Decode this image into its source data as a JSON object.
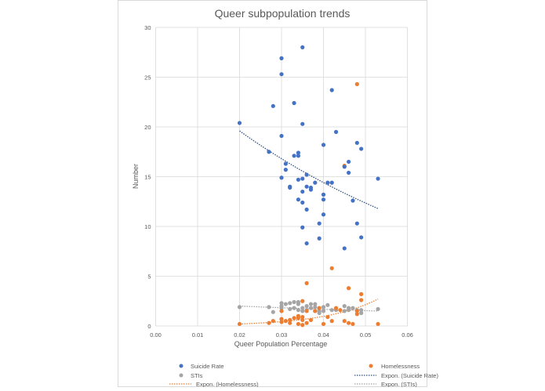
{
  "chart_data": {
    "type": "scatter",
    "title": "Queer subpopulation trends",
    "xlabel": "Queer Population Percentage",
    "ylabel": "Number",
    "xlim": [
      0,
      0.06
    ],
    "ylim": [
      0,
      30
    ],
    "x_ticks": [
      "0.00",
      "0.01",
      "0.02",
      "0.03",
      "0.04",
      "0.05",
      "0.06"
    ],
    "y_ticks": [
      "0",
      "5",
      "10",
      "15",
      "20",
      "25",
      "30"
    ],
    "grid": true,
    "legend_position": "bottom",
    "series": [
      {
        "name": "Suicide Rate",
        "color": "#4472C4",
        "points": [
          [
            0.02,
            20.4
          ],
          [
            0.028,
            22.1
          ],
          [
            0.03,
            26.9
          ],
          [
            0.03,
            25.3
          ],
          [
            0.03,
            19.1
          ],
          [
            0.03,
            14.9
          ],
          [
            0.027,
            17.5
          ],
          [
            0.033,
            22.4
          ],
          [
            0.035,
            28.0
          ],
          [
            0.035,
            20.3
          ],
          [
            0.042,
            23.7
          ],
          [
            0.043,
            19.5
          ],
          [
            0.04,
            18.2
          ],
          [
            0.048,
            18.4
          ],
          [
            0.049,
            17.8
          ],
          [
            0.031,
            16.3
          ],
          [
            0.031,
            15.7
          ],
          [
            0.033,
            17.1
          ],
          [
            0.034,
            17.4
          ],
          [
            0.034,
            17.1
          ],
          [
            0.046,
            16.5
          ],
          [
            0.045,
            16.0
          ],
          [
            0.046,
            15.4
          ],
          [
            0.036,
            15.2
          ],
          [
            0.032,
            14.0
          ],
          [
            0.032,
            13.9
          ],
          [
            0.034,
            14.7
          ],
          [
            0.035,
            14.8
          ],
          [
            0.036,
            14.0
          ],
          [
            0.037,
            13.7
          ],
          [
            0.037,
            13.9
          ],
          [
            0.038,
            14.4
          ],
          [
            0.035,
            13.5
          ],
          [
            0.04,
            13.2
          ],
          [
            0.04,
            12.7
          ],
          [
            0.041,
            14.4
          ],
          [
            0.042,
            14.4
          ],
          [
            0.034,
            12.7
          ],
          [
            0.035,
            12.4
          ],
          [
            0.036,
            11.7
          ],
          [
            0.04,
            11.2
          ],
          [
            0.047,
            12.6
          ],
          [
            0.035,
            9.9
          ],
          [
            0.039,
            10.3
          ],
          [
            0.048,
            10.3
          ],
          [
            0.036,
            8.3
          ],
          [
            0.039,
            8.8
          ],
          [
            0.049,
            8.9
          ],
          [
            0.045,
            7.8
          ],
          [
            0.053,
            14.8
          ]
        ]
      },
      {
        "name": "Homelessness",
        "color": "#ED7D31",
        "points": [
          [
            0.048,
            24.3
          ],
          [
            0.045,
            16.1
          ],
          [
            0.042,
            5.8
          ],
          [
            0.036,
            4.3
          ],
          [
            0.046,
            3.8
          ],
          [
            0.049,
            3.2
          ],
          [
            0.049,
            2.6
          ],
          [
            0.02,
            0.2
          ],
          [
            0.027,
            0.3
          ],
          [
            0.028,
            0.5
          ],
          [
            0.03,
            0.7
          ],
          [
            0.03,
            0.4
          ],
          [
            0.031,
            0.5
          ],
          [
            0.032,
            0.6
          ],
          [
            0.032,
            0.3
          ],
          [
            0.033,
            0.8
          ],
          [
            0.034,
            0.8
          ],
          [
            0.034,
            1.0
          ],
          [
            0.035,
            0.9
          ],
          [
            0.035,
            0.6
          ],
          [
            0.034,
            0.2
          ],
          [
            0.035,
            0.1
          ],
          [
            0.036,
            0.3
          ],
          [
            0.037,
            0.6
          ],
          [
            0.03,
            1.5
          ],
          [
            0.035,
            2.5
          ],
          [
            0.038,
            1.5
          ],
          [
            0.039,
            1.8
          ],
          [
            0.041,
            0.9
          ],
          [
            0.04,
            0.2
          ],
          [
            0.042,
            0.5
          ],
          [
            0.043,
            1.8
          ],
          [
            0.045,
            0.5
          ],
          [
            0.046,
            0.3
          ],
          [
            0.047,
            0.2
          ],
          [
            0.048,
            1.2
          ],
          [
            0.048,
            1.5
          ],
          [
            0.053,
            0.2
          ],
          [
            0.036,
            1.5
          ],
          [
            0.044,
            1.6
          ]
        ]
      },
      {
        "name": "STIs",
        "color": "#A5A5A5",
        "points": [
          [
            0.02,
            1.9
          ],
          [
            0.027,
            1.9
          ],
          [
            0.028,
            1.4
          ],
          [
            0.03,
            2.3
          ],
          [
            0.03,
            2.0
          ],
          [
            0.03,
            1.8
          ],
          [
            0.031,
            2.2
          ],
          [
            0.032,
            2.3
          ],
          [
            0.032,
            1.7
          ],
          [
            0.033,
            2.4
          ],
          [
            0.033,
            1.8
          ],
          [
            0.034,
            2.4
          ],
          [
            0.034,
            2.2
          ],
          [
            0.034,
            1.6
          ],
          [
            0.035,
            1.8
          ],
          [
            0.035,
            1.5
          ],
          [
            0.036,
            2.0
          ],
          [
            0.036,
            1.6
          ],
          [
            0.037,
            2.2
          ],
          [
            0.037,
            1.8
          ],
          [
            0.038,
            2.2
          ],
          [
            0.038,
            1.9
          ],
          [
            0.038,
            1.5
          ],
          [
            0.039,
            1.5
          ],
          [
            0.039,
            1.3
          ],
          [
            0.04,
            1.9
          ],
          [
            0.04,
            1.5
          ],
          [
            0.041,
            2.1
          ],
          [
            0.042,
            1.6
          ],
          [
            0.043,
            1.6
          ],
          [
            0.045,
            2.0
          ],
          [
            0.045,
            1.5
          ],
          [
            0.046,
            1.6
          ],
          [
            0.046,
            1.8
          ],
          [
            0.047,
            1.8
          ],
          [
            0.048,
            1.6
          ],
          [
            0.049,
            1.6
          ],
          [
            0.049,
            1.3
          ],
          [
            0.053,
            1.7
          ]
        ]
      }
    ],
    "trendlines": [
      {
        "name": "Expon. (Suicide Rate)",
        "type": "exponential",
        "color": "#2F4F7F",
        "a": 26.66,
        "b": -15.38,
        "x_range": [
          0.02,
          0.053
        ]
      },
      {
        "name": "Expon. (Homelessness)",
        "type": "exponential",
        "color": "#ED7D31",
        "a": 0.0413,
        "b": 78.9,
        "x_range": [
          0.02,
          0.053
        ]
      },
      {
        "name": "Expon. (STIs)",
        "type": "exponential",
        "color": "#A5A5A5",
        "a": 2.38,
        "b": -8.72,
        "x_range": [
          0.02,
          0.053
        ]
      }
    ]
  }
}
